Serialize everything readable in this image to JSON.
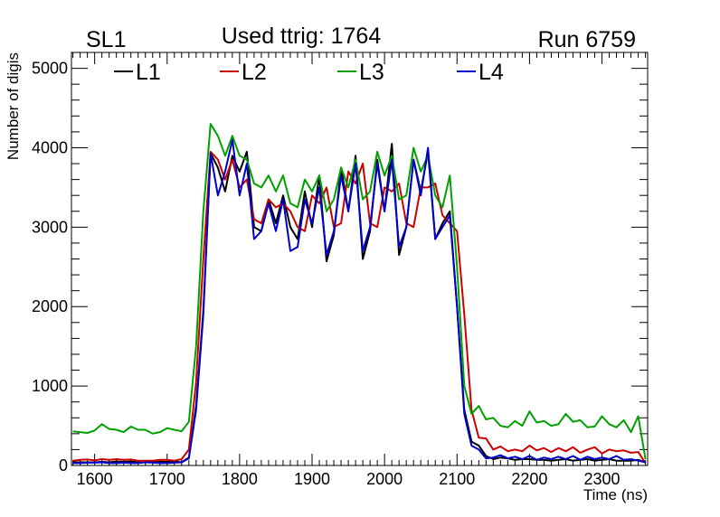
{
  "header": {
    "left": "SL1",
    "center": "Used ttrig: 1764",
    "right": "Run 6759"
  },
  "chart_data": {
    "type": "line",
    "xlabel": "Time (ns)",
    "ylabel": "Number of digis",
    "xlim": [
      1568,
      2363
    ],
    "ylim": [
      0,
      5200
    ],
    "xticks": [
      1600,
      1700,
      1800,
      1900,
      2000,
      2100,
      2200,
      2300
    ],
    "yticks": [
      0,
      1000,
      2000,
      3000,
      4000,
      5000
    ],
    "x_minor_step": 10,
    "y_minor_step": 200,
    "grid": false,
    "legend_position": "top",
    "x": [
      1570,
      1580,
      1590,
      1600,
      1610,
      1620,
      1630,
      1640,
      1650,
      1660,
      1670,
      1680,
      1690,
      1700,
      1710,
      1720,
      1730,
      1740,
      1750,
      1760,
      1770,
      1780,
      1790,
      1800,
      1810,
      1820,
      1830,
      1840,
      1850,
      1860,
      1870,
      1880,
      1890,
      1900,
      1910,
      1920,
      1930,
      1940,
      1950,
      1960,
      1970,
      1980,
      1990,
      2000,
      2010,
      2020,
      2030,
      2040,
      2050,
      2060,
      2070,
      2080,
      2090,
      2100,
      2110,
      2120,
      2130,
      2140,
      2150,
      2160,
      2170,
      2180,
      2190,
      2200,
      2210,
      2220,
      2230,
      2240,
      2250,
      2260,
      2270,
      2280,
      2290,
      2300,
      2310,
      2320,
      2330,
      2340,
      2350,
      2360
    ],
    "series": [
      {
        "name": "L1",
        "color": "#000000",
        "values": [
          40,
          40,
          40,
          40,
          45,
          40,
          50,
          45,
          50,
          40,
          45,
          40,
          50,
          45,
          50,
          40,
          100,
          750,
          1950,
          3930,
          3750,
          3450,
          3900,
          3700,
          3950,
          3000,
          2950,
          3350,
          3050,
          3400,
          3000,
          2850,
          3450,
          3000,
          3650,
          2570,
          2900,
          3750,
          3200,
          3900,
          2600,
          2950,
          3850,
          3200,
          4050,
          2650,
          3000,
          3850,
          3450,
          3950,
          2850,
          3050,
          3200,
          2000,
          700,
          300,
          250,
          120,
          80,
          100,
          90,
          70,
          80,
          80,
          70,
          70,
          60,
          70,
          80,
          60,
          70,
          80,
          60,
          70,
          80,
          60,
          60,
          60,
          70,
          40
        ]
      },
      {
        "name": "L2",
        "color": "#cc0000",
        "values": [
          60,
          70,
          75,
          65,
          80,
          70,
          80,
          70,
          75,
          60,
          60,
          60,
          70,
          70,
          60,
          80,
          200,
          1050,
          2600,
          3950,
          3850,
          3600,
          3850,
          3500,
          3600,
          3100,
          3050,
          3350,
          3250,
          3300,
          3200,
          3000,
          2950,
          3400,
          3300,
          3500,
          3000,
          3050,
          3700,
          3550,
          3800,
          3050,
          3000,
          3500,
          3450,
          3550,
          3050,
          3000,
          3500,
          3500,
          3550,
          3150,
          3050,
          2950,
          1900,
          700,
          350,
          340,
          200,
          240,
          180,
          200,
          180,
          250,
          190,
          220,
          170,
          220,
          180,
          230,
          160,
          200,
          230,
          150,
          200,
          180,
          190,
          160,
          170,
          30
        ]
      },
      {
        "name": "L3",
        "color": "#00a000",
        "values": [
          430,
          420,
          410,
          440,
          520,
          460,
          450,
          420,
          490,
          450,
          450,
          400,
          420,
          470,
          450,
          430,
          550,
          1500,
          3200,
          4300,
          4150,
          3900,
          4150,
          3900,
          3850,
          3550,
          3500,
          3650,
          3450,
          3650,
          3300,
          3250,
          3600,
          3450,
          3650,
          3200,
          3350,
          3750,
          3500,
          3850,
          3350,
          3450,
          3950,
          3650,
          3900,
          3350,
          3400,
          4000,
          3700,
          3900,
          3400,
          3250,
          3650,
          2500,
          1000,
          650,
          750,
          580,
          600,
          500,
          480,
          560,
          500,
          680,
          540,
          560,
          500,
          520,
          650,
          550,
          570,
          480,
          490,
          620,
          520,
          480,
          570,
          420,
          620,
          80
        ]
      },
      {
        "name": "L4",
        "color": "#0000cc",
        "values": [
          30,
          30,
          35,
          35,
          40,
          30,
          30,
          35,
          30,
          30,
          40,
          35,
          30,
          30,
          35,
          40,
          90,
          700,
          1900,
          3930,
          3400,
          3700,
          4100,
          3400,
          3800,
          2850,
          2950,
          3300,
          2950,
          3350,
          2700,
          2750,
          3350,
          3050,
          3500,
          2650,
          2950,
          3650,
          3200,
          3800,
          2700,
          3000,
          3800,
          3200,
          3850,
          2750,
          3000,
          3850,
          3400,
          4000,
          2850,
          3000,
          3150,
          2000,
          650,
          250,
          200,
          90,
          100,
          130,
          90,
          110,
          80,
          120,
          70,
          100,
          80,
          110,
          80,
          120,
          70,
          110,
          80,
          100,
          80,
          120,
          70,
          80,
          60,
          40
        ]
      }
    ]
  }
}
